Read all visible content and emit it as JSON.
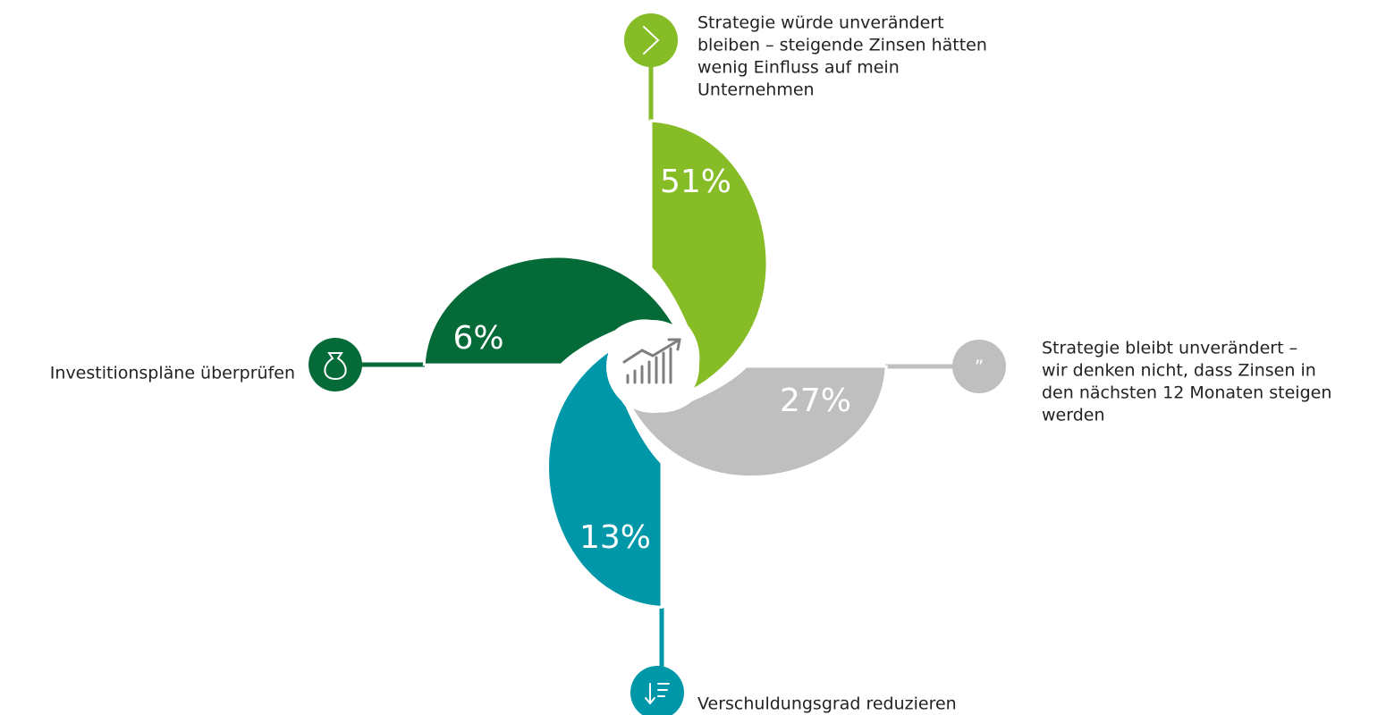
{
  "items": [
    {
      "value_label": "51%",
      "label": [
        "Strategie würde unverändert",
        "bleiben – steigende Zinsen hätten",
        "wenig Einfluss auf mein",
        "Unternehmen"
      ],
      "color": "#86bc25"
    },
    {
      "value_label": "27%",
      "label": [
        "Strategie bleibt unverändert –",
        "wir denken nicht, dass Zinsen in",
        "den nächsten 12 Monaten steigen",
        "werden"
      ],
      "color": "#bfbfbf"
    },
    {
      "value_label": "13%",
      "label": [
        "Verschuldungsgrad reduzieren"
      ],
      "color": "#0097a9"
    },
    {
      "value_label": "6%",
      "label": [
        "Investitionspläne überprüfen"
      ],
      "color": "#046a38"
    }
  ]
}
